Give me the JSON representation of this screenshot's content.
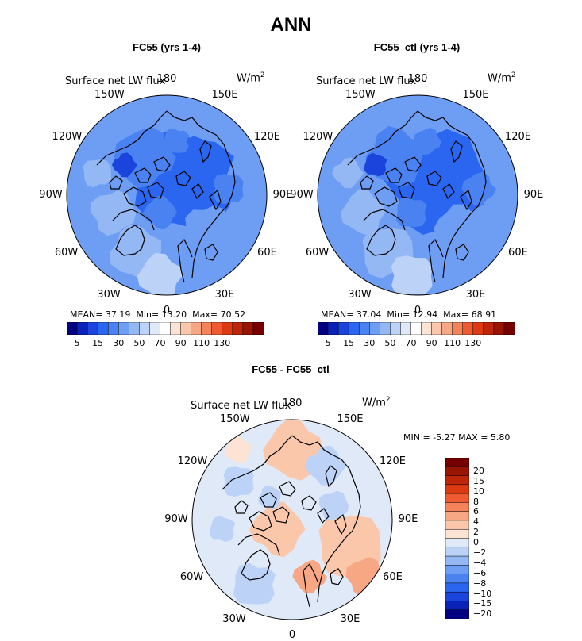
{
  "title": "ANN",
  "colors": {
    "seq": [
      "#020080",
      "#0a22b8",
      "#1a44dc",
      "#2a66ef",
      "#4a82f2",
      "#6e9ef4",
      "#94b8f4",
      "#bcd2f6",
      "#dfe9f8",
      "#ffffff",
      "#fde3d4",
      "#fbc7ab",
      "#f8a784",
      "#f5835a",
      "#f05a32",
      "#de3a12",
      "#bf2508",
      "#9a1404",
      "#760000"
    ],
    "diff": [
      "#020080",
      "#0a22b8",
      "#1a44dc",
      "#2a66ef",
      "#4a82f2",
      "#6e9ef4",
      "#94b8f4",
      "#bcd2f6",
      "#dfe9f8",
      "#fde3d4",
      "#fbc7ab",
      "#f8a784",
      "#f5835a",
      "#f05a32",
      "#de3a12",
      "#bf2508",
      "#9a1404",
      "#760000"
    ]
  },
  "chart_data": [
    {
      "type": "heatmap",
      "projection": "north polar stereographic",
      "title": "FC55 (yrs 1-4)",
      "variable": "Surface net LW flux",
      "units_base": "W/m",
      "units_exp": "2",
      "lon_labels": [
        "180",
        "150E",
        "120E",
        "90E",
        "60E",
        "30E",
        "0",
        "30W",
        "60W",
        "90W",
        "120W",
        "150W"
      ],
      "stats": {
        "mean_label": "MEAN=",
        "mean": "37.19",
        "min_label": "Min=",
        "min": "13.20",
        "max_label": "Max=",
        "max": "70.52"
      },
      "colorbar_ticks": [
        "5",
        "15",
        "30",
        "50",
        "70",
        "90",
        "110",
        "130"
      ],
      "levels": [
        5,
        10,
        15,
        20,
        25,
        30,
        40,
        50,
        60,
        70,
        80,
        90,
        100,
        110,
        120,
        130,
        140
      ]
    },
    {
      "type": "heatmap",
      "projection": "north polar stereographic",
      "title": "FC55_ctl (yrs 1-4)",
      "variable": "Surface net LW flux",
      "units_base": "W/m",
      "units_exp": "2",
      "lon_labels": [
        "180",
        "150E",
        "120E",
        "90E",
        "60E",
        "30E",
        "0",
        "30W",
        "60W",
        "90W",
        "120W",
        "150W"
      ],
      "stats": {
        "mean_label": "MEAN=",
        "mean": "37.04",
        "min_label": "Min=",
        "min": "12.94",
        "max_label": "Max=",
        "max": "68.91"
      },
      "colorbar_ticks": [
        "5",
        "15",
        "30",
        "50",
        "70",
        "90",
        "110",
        "130"
      ],
      "levels": [
        5,
        10,
        15,
        20,
        25,
        30,
        40,
        50,
        60,
        70,
        80,
        90,
        100,
        110,
        120,
        130,
        140
      ]
    },
    {
      "type": "heatmap",
      "projection": "north polar stereographic",
      "title": "FC55 - FC55_ctl",
      "variable": "Surface net LW flux",
      "units_base": "W/m",
      "units_exp": "2",
      "lon_labels": [
        "180",
        "150E",
        "120E",
        "90E",
        "60E",
        "30E",
        "0",
        "30W",
        "60W",
        "90W",
        "120W",
        "150W"
      ],
      "stats": {
        "min_label": "MIN =",
        "min": "-5.27",
        "max_label": "MAX =",
        "max": "5.80"
      },
      "colorbar_ticks": [
        "20",
        "15",
        "10",
        "8",
        "6",
        "4",
        "2",
        "0",
        "−2",
        "−4",
        "−6",
        "−8",
        "−10",
        "−15",
        "−20"
      ],
      "levels": [
        -20,
        -15,
        -10,
        -8,
        -6,
        -4,
        -2,
        0,
        2,
        4,
        6,
        8,
        10,
        15,
        20
      ]
    }
  ]
}
